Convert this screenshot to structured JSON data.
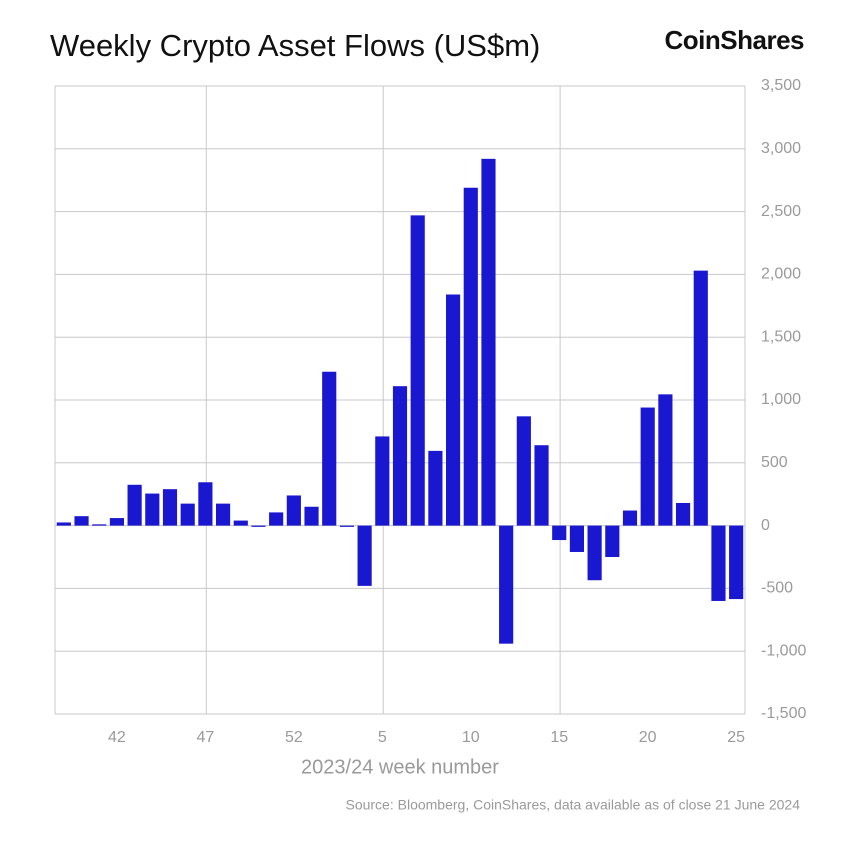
{
  "chart_data": {
    "type": "bar",
    "title": "Weekly Crypto Asset Flows (US$m)",
    "brand": "CoinShares",
    "x_label": "2023/24 week number",
    "source": "Source: Bloomberg, CoinShares, data available as of close 21 June 2024",
    "categories": [
      null,
      null,
      null,
      "42",
      null,
      null,
      null,
      null,
      "47",
      null,
      null,
      null,
      null,
      "52",
      null,
      null,
      null,
      null,
      "5",
      null,
      null,
      null,
      null,
      "10",
      null,
      null,
      null,
      null,
      "15",
      null,
      null,
      null,
      null,
      "20",
      null,
      null,
      null,
      null,
      "25"
    ],
    "values": [
      25,
      75,
      10,
      60,
      325,
      255,
      290,
      175,
      345,
      175,
      40,
      -10,
      105,
      240,
      150,
      1225,
      -10,
      -480,
      710,
      1110,
      2470,
      595,
      1840,
      2690,
      2920,
      -940,
      870,
      640,
      -115,
      -210,
      -435,
      -250,
      120,
      940,
      1045,
      180,
      2030,
      -600,
      -585
    ],
    "color": "#1a17d1",
    "ylim": [
      -1500,
      3500
    ],
    "yticks": [
      {
        "value": -1500,
        "label": "-1,500"
      },
      {
        "value": -1000,
        "label": "-1,000"
      },
      -500,
      0,
      500,
      {
        "value": 1000,
        "label": "1,000"
      },
      {
        "value": 1500,
        "label": "1,500"
      },
      {
        "value": 2000,
        "label": "2,000"
      },
      {
        "value": 2500,
        "label": "2,500"
      },
      {
        "value": 3000,
        "label": "3,000"
      },
      {
        "value": 3500,
        "label": "3,500"
      }
    ],
    "grid": true
  }
}
